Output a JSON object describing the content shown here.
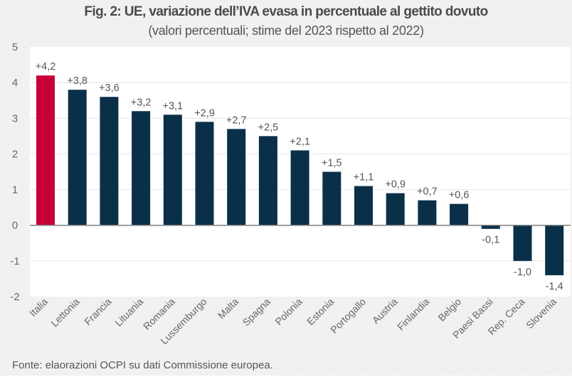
{
  "chart_data": {
    "type": "bar",
    "title": "Fig. 2: UE, variazione dell’IVA evasa in percentuale al gettito dovuto",
    "subtitle": "(valori percentuali; stime del 2023 rispetto al 2022)",
    "xlabel": "",
    "ylabel": "",
    "ylim": [
      -2,
      5
    ],
    "yticks": [
      5,
      4,
      3,
      2,
      1,
      0,
      -1,
      -2
    ],
    "grid": true,
    "legend": "none",
    "categories": [
      "Italia",
      "Lettonia",
      "Francia",
      "Lituania",
      "Romania",
      "Lussemburgo",
      "Malta",
      "Spagna",
      "Polonia",
      "Estonia",
      "Portogallo",
      "Austria",
      "Finlandia",
      "Belgio",
      "Paesi Bassi",
      "Rep. Ceca",
      "Slovenia"
    ],
    "values": [
      4.2,
      3.8,
      3.6,
      3.2,
      3.1,
      2.9,
      2.7,
      2.5,
      2.1,
      1.5,
      1.1,
      0.9,
      0.7,
      0.6,
      -0.1,
      -1.0,
      -1.4
    ],
    "data_labels": [
      "+4,2",
      "+3,8",
      "+3,6",
      "+3,2",
      "+3,1",
      "+2,9",
      "+2,7",
      "+2,5",
      "+2,1",
      "+1,5",
      "+1,1",
      "+0,9",
      "+0,7",
      "+0,6",
      "-0,1",
      "-1,0",
      "-1,4"
    ],
    "highlight_category": "Italia",
    "colors": {
      "highlight": "#C8003A",
      "default": "#0A3049",
      "gridline": "#E4E4E4",
      "zero_line": "#808080"
    },
    "source": "Fonte: elaorazioni OCPI su dati Commissione europea."
  }
}
